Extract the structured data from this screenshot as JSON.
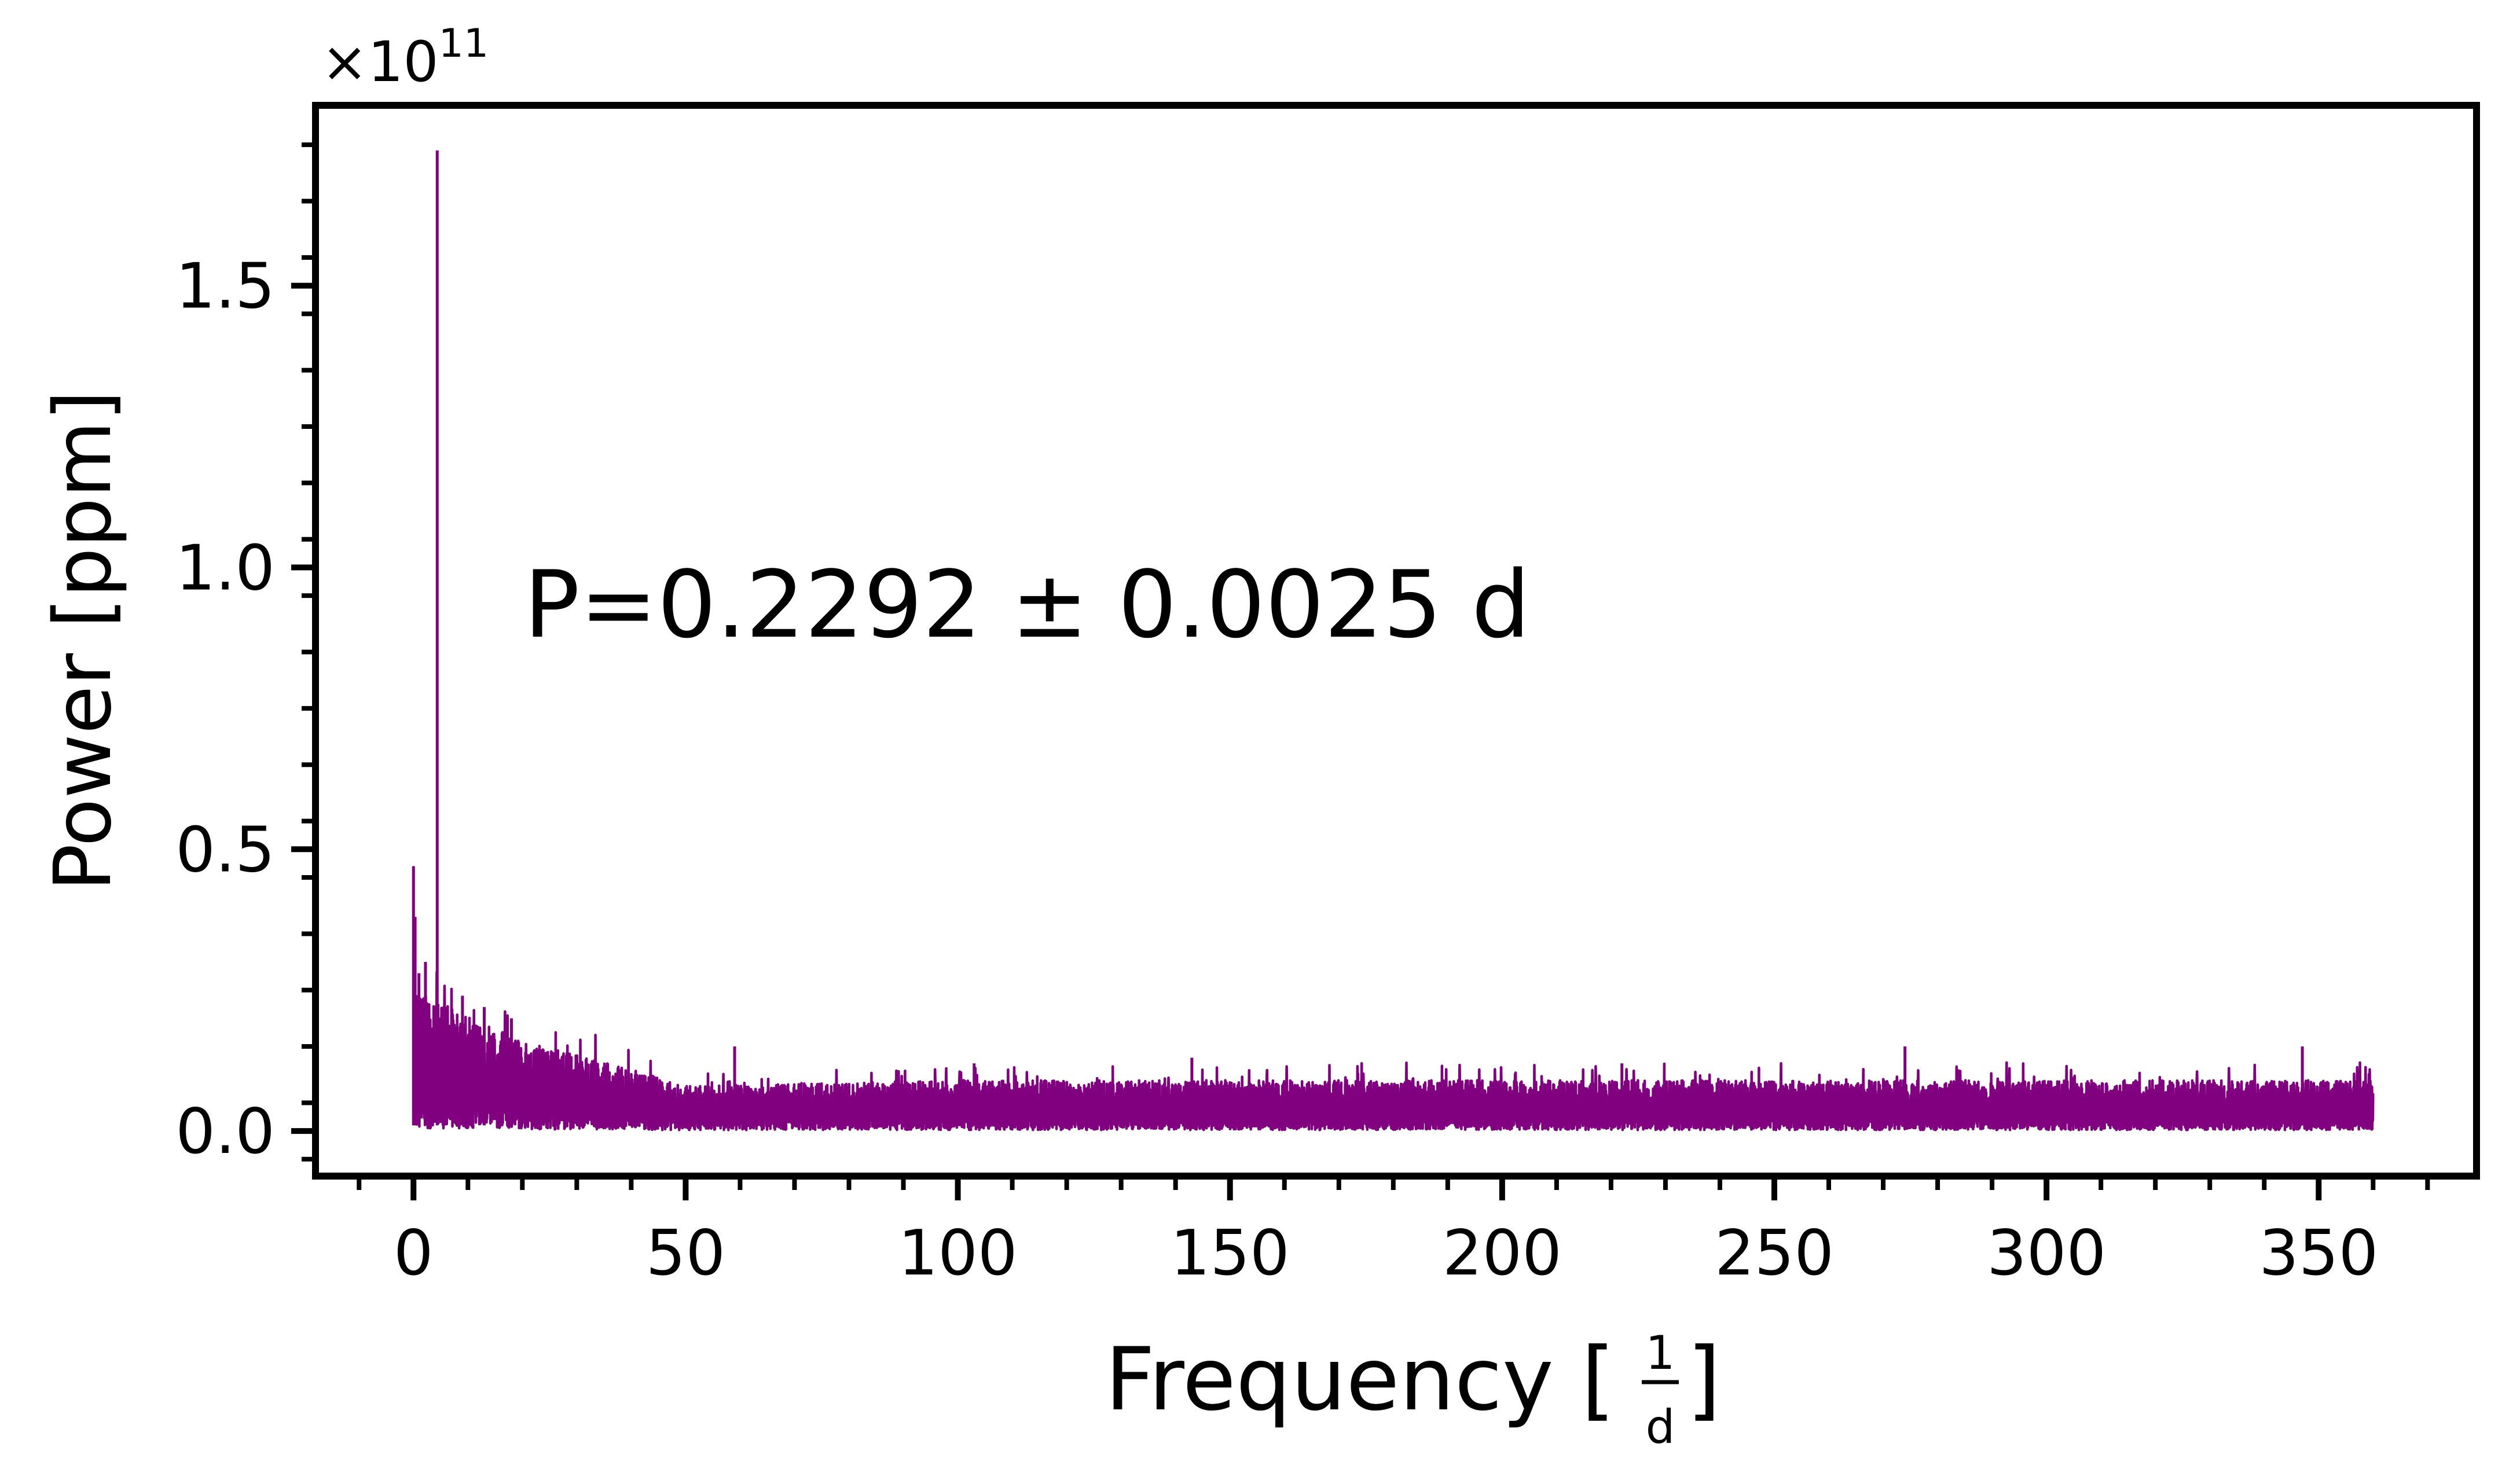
{
  "chart_data": {
    "type": "line",
    "title": "",
    "xlabel_main": "Frequency [",
    "xlabel_frac_num": "1",
    "xlabel_frac_den": "d",
    "xlabel_close": "]",
    "ylabel": "Power [ppm]",
    "y_offset_prefix": "×10",
    "y_offset_exponent": "11",
    "annotation": "P=0.2292 ± 0.0025 d",
    "x_ticks": [
      0,
      50,
      100,
      150,
      200,
      250,
      300,
      350
    ],
    "x_tick_labels": [
      "0",
      "50",
      "100",
      "150",
      "200",
      "250",
      "300",
      "350"
    ],
    "y_ticks": [
      0.0,
      0.5,
      1.0,
      1.5
    ],
    "y_tick_labels": [
      "0.0",
      "0.5",
      "1.0",
      "1.5"
    ],
    "xlim": [
      -18,
      379
    ],
    "ylim": [
      -0.08,
      1.82
    ],
    "y_scale": 100000000000.0,
    "line_color": "#800080",
    "grid": false,
    "series": [
      {
        "x_range": [
          0,
          360
        ],
        "peaks": [
          {
            "x": 0.0,
            "y": 0.47
          },
          {
            "x": 0.3,
            "y": 0.38
          },
          {
            "x": 1.0,
            "y": 0.28
          },
          {
            "x": 2.2,
            "y": 0.3
          },
          {
            "x": 4.36,
            "y": 1.74
          },
          {
            "x": 6.0,
            "y": 0.22
          },
          {
            "x": 9.0,
            "y": 0.24
          },
          {
            "x": 13.0,
            "y": 0.22
          },
          {
            "x": 18.0,
            "y": 0.2
          },
          {
            "x": 59.0,
            "y": 0.15
          },
          {
            "x": 103.0,
            "y": 0.12
          },
          {
            "x": 143.0,
            "y": 0.13
          },
          {
            "x": 222.0,
            "y": 0.12
          },
          {
            "x": 274.0,
            "y": 0.15
          },
          {
            "x": 347.0,
            "y": 0.15
          }
        ],
        "envelope": [
          {
            "x": 0,
            "y": 0.25
          },
          {
            "x": 20,
            "y": 0.16
          },
          {
            "x": 40,
            "y": 0.11
          },
          {
            "x": 50,
            "y": 0.08
          },
          {
            "x": 100,
            "y": 0.09
          },
          {
            "x": 200,
            "y": 0.09
          },
          {
            "x": 300,
            "y": 0.09
          },
          {
            "x": 360,
            "y": 0.09
          }
        ]
      }
    ]
  }
}
